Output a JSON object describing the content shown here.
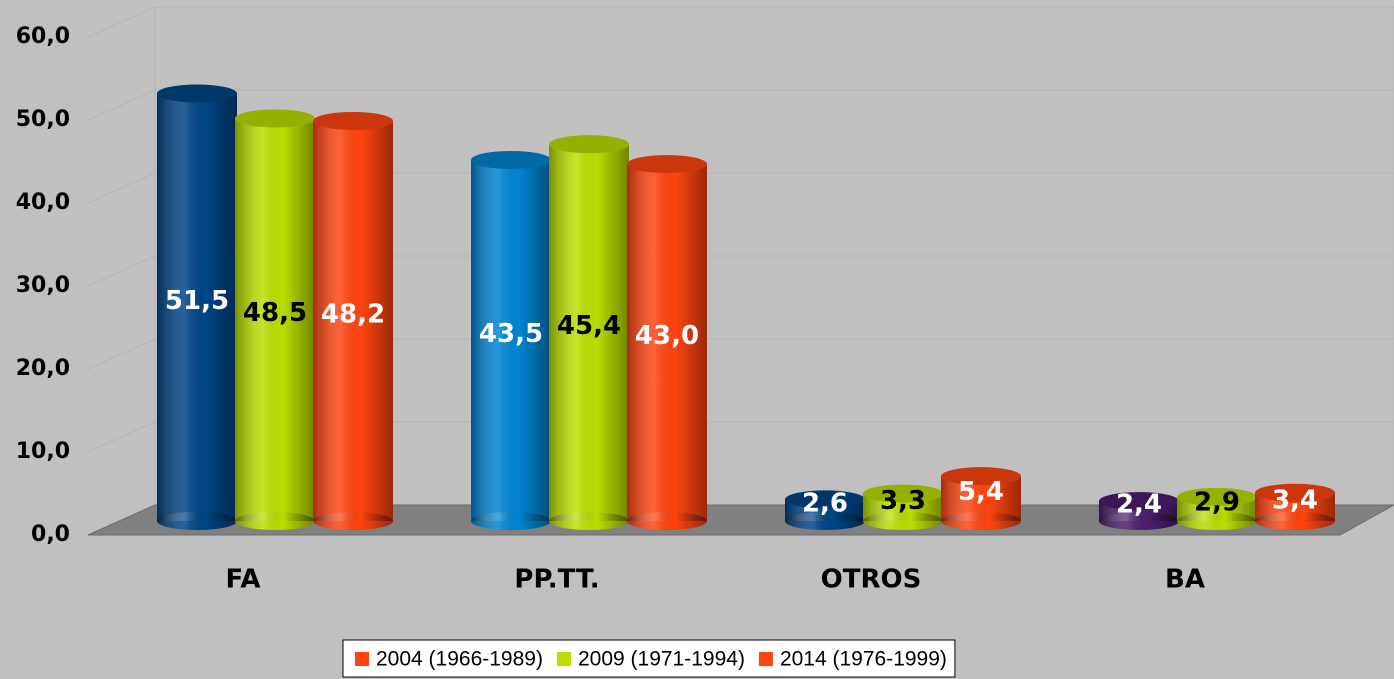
{
  "chart_data": {
    "type": "bar3d",
    "categories": [
      "FA",
      "PP.TT.",
      "OTROS",
      "BA"
    ],
    "series": [
      {
        "name": "2004 (1966-1989)",
        "color": "#ff4411",
        "bar_colors": [
          "#004586",
          "#0084d1",
          "#004586",
          "#4b1f6f"
        ],
        "label_color": "#ffffff",
        "values": [
          51.5,
          43.5,
          2.6,
          2.4
        ],
        "value_labels": [
          "51,5",
          "43,5",
          "2,6",
          "2,4"
        ]
      },
      {
        "name": "2009 (1971-1994)",
        "color": "#bbdd00",
        "bar_colors": [
          "#bbdd00",
          "#bbdd00",
          "#bbdd00",
          "#bbdd00"
        ],
        "label_color": "#000000",
        "values": [
          48.5,
          45.4,
          3.3,
          2.9
        ],
        "value_labels": [
          "48,5",
          "45,4",
          "3,3",
          "2,9"
        ]
      },
      {
        "name": "2014 (1976-1999)",
        "color": "#ff4411",
        "bar_colors": [
          "#ff4411",
          "#ff4411",
          "#ff4411",
          "#ff4411"
        ],
        "label_color": "#ffffff",
        "values": [
          48.2,
          43.0,
          5.4,
          3.4
        ],
        "value_labels": [
          "48,2",
          "43,0",
          "5,4",
          "3,4"
        ]
      }
    ],
    "ylim": [
      0,
      60
    ],
    "yticks": [
      {
        "value": 0,
        "label": "0,0"
      },
      {
        "value": 10,
        "label": "10,0"
      },
      {
        "value": 20,
        "label": "20,0"
      },
      {
        "value": 30,
        "label": "30,0"
      },
      {
        "value": 40,
        "label": "40,0"
      },
      {
        "value": 50,
        "label": "50,0"
      },
      {
        "value": 60,
        "label": "60,0"
      }
    ],
    "grid": true,
    "legend": "bottom"
  }
}
